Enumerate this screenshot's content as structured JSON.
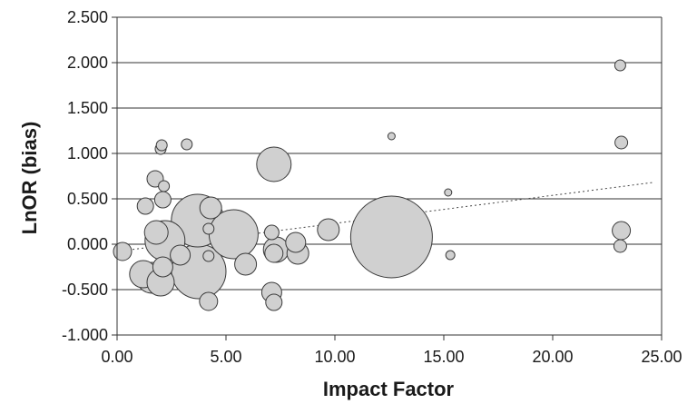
{
  "chart_data": {
    "type": "scatter",
    "title": "",
    "xlabel": "Impact Factor",
    "ylabel": "LnOR (bias)",
    "xlim": [
      0,
      25
    ],
    "ylim": [
      -1,
      2.5
    ],
    "x_ticks": [
      0,
      5,
      10,
      15,
      20,
      25
    ],
    "x_tick_labels": [
      "0.00",
      "5.00",
      "10.00",
      "15.00",
      "20.00",
      "25.00"
    ],
    "y_ticks": [
      -1,
      -0.5,
      0,
      0.5,
      1,
      1.5,
      2,
      2.5
    ],
    "y_tick_labels": [
      "-1.000",
      "-0.500",
      "0.000",
      "0.500",
      "1.000",
      "1.500",
      "2.000",
      "2.500"
    ],
    "grid": "horizontal",
    "bubble_color": "#d0d0d0",
    "trendline": {
      "style": "dotted",
      "x": [
        0.3,
        24.6
      ],
      "y": [
        -0.07,
        0.68
      ]
    },
    "points": [
      {
        "x": 0.25,
        "y": -0.08,
        "size": 10
      },
      {
        "x": 1.2,
        "y": -0.33,
        "size": 15
      },
      {
        "x": 1.3,
        "y": 0.42,
        "size": 9
      },
      {
        "x": 1.6,
        "y": -0.37,
        "size": 17
      },
      {
        "x": 1.75,
        "y": 0.72,
        "size": 9
      },
      {
        "x": 1.8,
        "y": 0.13,
        "size": 13
      },
      {
        "x": 2.0,
        "y": 1.05,
        "size": 6
      },
      {
        "x": 2.05,
        "y": 1.09,
        "size": 6
      },
      {
        "x": 2.1,
        "y": 0.49,
        "size": 9
      },
      {
        "x": 2.15,
        "y": 0.64,
        "size": 6
      },
      {
        "x": 2.0,
        "y": -0.42,
        "size": 15
      },
      {
        "x": 2.1,
        "y": -0.25,
        "size": 11
      },
      {
        "x": 2.2,
        "y": 0.04,
        "size": 22
      },
      {
        "x": 2.9,
        "y": -0.12,
        "size": 11
      },
      {
        "x": 3.2,
        "y": 1.1,
        "size": 6
      },
      {
        "x": 3.7,
        "y": 0.26,
        "size": 29
      },
      {
        "x": 3.75,
        "y": -0.3,
        "size": 30
      },
      {
        "x": 4.2,
        "y": 0.17,
        "size": 6
      },
      {
        "x": 4.3,
        "y": 0.4,
        "size": 12
      },
      {
        "x": 4.2,
        "y": -0.13,
        "size": 6
      },
      {
        "x": 4.2,
        "y": -0.63,
        "size": 10
      },
      {
        "x": 5.35,
        "y": 0.11,
        "size": 27
      },
      {
        "x": 5.9,
        "y": -0.22,
        "size": 12
      },
      {
        "x": 7.2,
        "y": 0.88,
        "size": 19
      },
      {
        "x": 7.1,
        "y": 0.13,
        "size": 8
      },
      {
        "x": 7.2,
        "y": -0.1,
        "size": 10
      },
      {
        "x": 7.3,
        "y": -0.06,
        "size": 14
      },
      {
        "x": 7.1,
        "y": -0.53,
        "size": 11
      },
      {
        "x": 7.2,
        "y": -0.64,
        "size": 9
      },
      {
        "x": 8.2,
        "y": 0.02,
        "size": 11
      },
      {
        "x": 8.3,
        "y": -0.1,
        "size": 12
      },
      {
        "x": 9.7,
        "y": 0.16,
        "size": 12
      },
      {
        "x": 12.6,
        "y": 1.19,
        "size": 4
      },
      {
        "x": 12.6,
        "y": 0.08,
        "size": 45
      },
      {
        "x": 15.2,
        "y": 0.57,
        "size": 4
      },
      {
        "x": 15.3,
        "y": -0.12,
        "size": 5
      },
      {
        "x": 23.1,
        "y": 1.97,
        "size": 6
      },
      {
        "x": 23.15,
        "y": 1.12,
        "size": 7
      },
      {
        "x": 23.15,
        "y": 0.15,
        "size": 10
      },
      {
        "x": 23.1,
        "y": -0.02,
        "size": 7
      }
    ]
  }
}
